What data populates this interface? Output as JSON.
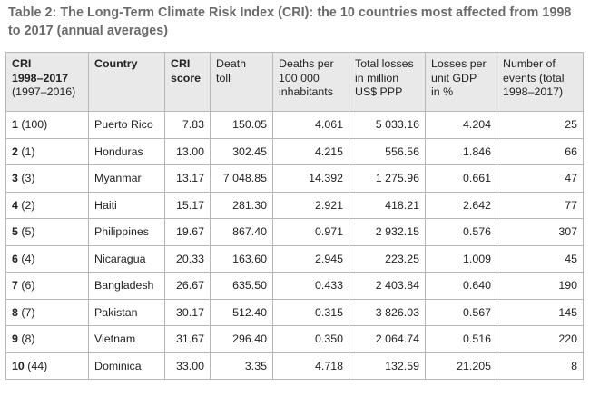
{
  "title": "Table 2: The Long-Term Climate Risk Index (CRI): the 10 countries most affected from 1998 to 2017 (annual averages)",
  "headers": {
    "rank": {
      "bold1": "CRI",
      "bold2": "1998–2017",
      "normal": "(1997–2016)"
    },
    "country": "Country",
    "score": {
      "line1": "CRI",
      "line2": "score"
    },
    "deaths": {
      "line1": "Death",
      "line2": "toll"
    },
    "deaths_per": {
      "line1": "Deaths per",
      "line2": "100 000",
      "line3": "inhabitants"
    },
    "losses": {
      "line1": "Total losses",
      "line2": "in million",
      "line3": "US$ PPP"
    },
    "losses_gdp": {
      "line1": "Losses per",
      "line2": "unit GDP",
      "line3": "in %"
    },
    "events": {
      "line1": "Number of",
      "line2": "events (total",
      "line3": "1998–2017)"
    }
  },
  "rows": [
    {
      "rank": "1",
      "prev": "(100)",
      "country": "Puerto Rico",
      "score": "7.83",
      "deaths": "150.05",
      "deaths_per": "4.061",
      "losses": "5 033.16",
      "losses_gdp": "4.204",
      "events": "25"
    },
    {
      "rank": "2",
      "prev": "(1)",
      "country": "Honduras",
      "score": "13.00",
      "deaths": "302.45",
      "deaths_per": "4.215",
      "losses": "556.56",
      "losses_gdp": "1.846",
      "events": "66"
    },
    {
      "rank": "3",
      "prev": "(3)",
      "country": "Myanmar",
      "score": "13.17",
      "deaths": "7 048.85",
      "deaths_per": "14.392",
      "losses": "1 275.96",
      "losses_gdp": "0.661",
      "events": "47"
    },
    {
      "rank": "4",
      "prev": "(2)",
      "country": "Haiti",
      "score": "15.17",
      "deaths": "281.30",
      "deaths_per": "2.921",
      "losses": "418.21",
      "losses_gdp": "2.642",
      "events": "77"
    },
    {
      "rank": "5",
      "prev": "(5)",
      "country": "Philippines",
      "score": "19.67",
      "deaths": "867.40",
      "deaths_per": "0.971",
      "losses": "2 932.15",
      "losses_gdp": "0.576",
      "events": "307"
    },
    {
      "rank": "6",
      "prev": "(4)",
      "country": "Nicaragua",
      "score": "20.33",
      "deaths": "163.60",
      "deaths_per": "2.945",
      "losses": "223.25",
      "losses_gdp": "1.009",
      "events": "45"
    },
    {
      "rank": "7",
      "prev": "(6)",
      "country": "Bangladesh",
      "score": "26.67",
      "deaths": "635.50",
      "deaths_per": "0.433",
      "losses": "2 403.84",
      "losses_gdp": "0.640",
      "events": "190"
    },
    {
      "rank": "8",
      "prev": "(7)",
      "country": "Pakistan",
      "score": "30.17",
      "deaths": "512.40",
      "deaths_per": "0.315",
      "losses": "3 826.03",
      "losses_gdp": "0.567",
      "events": "145"
    },
    {
      "rank": "9",
      "prev": "(8)",
      "country": "Vietnam",
      "score": "31.67",
      "deaths": "296.40",
      "deaths_per": "0.350",
      "losses": "2 064.74",
      "losses_gdp": "0.516",
      "events": "220"
    },
    {
      "rank": "10",
      "prev": "(44)",
      "country": "Dominica",
      "score": "33.00",
      "deaths": "3.35",
      "deaths_per": "4.718",
      "losses": "132.59",
      "losses_gdp": "21.205",
      "events": "8"
    }
  ]
}
